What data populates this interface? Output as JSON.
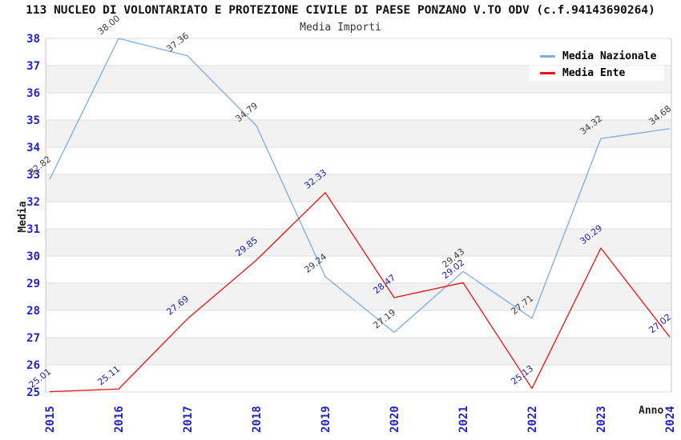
{
  "header": {
    "title": "113 NUCLEO DI VOLONTARIATO E PROTEZIONE CIVILE DI PAESE PONZANO V.TO ODV (c.f.94143690264)",
    "subtitle": "Media Importi"
  },
  "chart_data": {
    "type": "line",
    "title": "Media Importi",
    "xlabel": "Anno",
    "ylabel": "Media",
    "x": [
      2015,
      2016,
      2017,
      2018,
      2019,
      2020,
      2021,
      2022,
      2023,
      2024
    ],
    "series": [
      {
        "name": "Media Nazionale",
        "color": "#79ade4",
        "label_color": "#3c3c3c",
        "values": [
          32.82,
          38.0,
          37.36,
          34.79,
          29.24,
          27.19,
          29.43,
          27.71,
          34.32,
          34.68
        ]
      },
      {
        "name": "Media Ente",
        "color": "#ee1111",
        "label_color": "#2222aa",
        "values": [
          25.01,
          25.11,
          27.69,
          29.85,
          32.33,
          28.47,
          29.02,
          25.13,
          30.29,
          27.02
        ]
      }
    ],
    "ylim": [
      25,
      38
    ],
    "ytick_step": 1,
    "grid": true,
    "legend_position": "top-right",
    "axis_text_color": "#2323cd",
    "gridline_color": "#dcdcdc",
    "band_colors": [
      "#ffffff",
      "#f2f2f2"
    ],
    "value_label_decimals": 2
  }
}
